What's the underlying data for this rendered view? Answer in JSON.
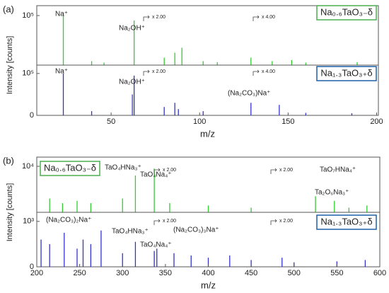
{
  "chart_data": [
    {
      "type": "bar",
      "panel_label": "(a)",
      "ylabel": "Intensity [counts]",
      "sample": "Na₀.₆TaO₃₋δ",
      "sample_color": "#4caf50",
      "color": "#33cc33",
      "xlim": [
        8,
        201
      ],
      "ylim": [
        0,
        120000
      ],
      "yticks": [
        {
          "value": 100000,
          "label": "10⁵"
        }
      ],
      "x": [
        23,
        39,
        46,
        63,
        80,
        86,
        90,
        102,
        110,
        129,
        141,
        152,
        160,
        189
      ],
      "values": [
        100000,
        8000,
        5000,
        90000,
        15000,
        25000,
        35000,
        8000,
        6000,
        15000,
        8000,
        10000,
        5000,
        6000
      ],
      "annotations": [
        {
          "text": "Na⁺",
          "color": "#222"
        },
        {
          "text": "Na₂OH⁺",
          "color": "#222"
        },
        {
          "text": "x 2.00",
          "color": "#444"
        },
        {
          "text": "x 4.00",
          "color": "#444"
        }
      ]
    },
    {
      "type": "bar",
      "xlabel": "m/z",
      "sample": "Na₁.₃TaO₃₊δ",
      "sample_color": "#1f5fa8",
      "color": "#3333cc",
      "xlim": [
        8,
        201
      ],
      "xticks": [
        50,
        100,
        150,
        200
      ],
      "ylim": [
        0,
        120000
      ],
      "yticks": [
        0,
        {
          "value": 100000,
          "label": "10⁵"
        }
      ],
      "x": [
        23,
        39,
        62,
        63,
        80,
        86,
        88,
        102,
        129,
        145,
        160,
        186
      ],
      "values": [
        100000,
        10000,
        50000,
        95000,
        20000,
        30000,
        15000,
        10000,
        30000,
        25000,
        6000,
        5000
      ],
      "annotations": [
        {
          "text": "Na⁺",
          "color": "#222"
        },
        {
          "text": "Na₂OH⁺",
          "color": "#222"
        },
        {
          "text": "x 2.00",
          "color": "#444"
        },
        {
          "text": "x 4.00",
          "color": "#444"
        },
        {
          "text": "(Na₂CO₃)Na⁺",
          "color": "#222"
        }
      ]
    },
    {
      "type": "bar",
      "panel_label": "(b)",
      "ylabel": "Intensity [counts]",
      "sample": "Na₀.₆TaO₃₋δ",
      "sample_color": "#4caf50",
      "color": "#33cc33",
      "xlim": [
        200,
        600
      ],
      "ylim": [
        0,
        12000
      ],
      "yticks": [
        {
          "value": 10000,
          "label": "10⁴"
        }
      ],
      "x": [
        215,
        230,
        247,
        263,
        300,
        315,
        337,
        355,
        400,
        450,
        525,
        547,
        564,
        585
      ],
      "values": [
        3000,
        2000,
        2500,
        2000,
        3000,
        8000,
        9500,
        2000,
        1500,
        1000,
        3500,
        2500,
        1000,
        1500
      ],
      "annotations": [
        {
          "text": "TaO₄HNa₃⁺",
          "color": "#c0392b"
        },
        {
          "text": "TaO₄Na₄⁺",
          "color": "#c0392b"
        },
        {
          "text": "x 2.00",
          "color": "#444"
        },
        {
          "text": "x 2.00",
          "color": "#444"
        },
        {
          "text": "TaO₇HNa₄⁺",
          "color": "#c0392b"
        },
        {
          "text": "Ta₂O₆Na₃⁺",
          "color": "#c0392b"
        }
      ]
    },
    {
      "type": "bar",
      "xlabel": "m/z",
      "sample": "Na₁.₃TaO₃₊δ",
      "sample_color": "#1f5fa8",
      "color": "#3333cc",
      "xlim": [
        200,
        600
      ],
      "xticks": [
        200,
        250,
        300,
        350,
        400,
        450,
        500,
        550,
        600
      ],
      "ylim": [
        0,
        1200
      ],
      "yticks": [
        0,
        {
          "value": 1000,
          "label": "10³"
        }
      ],
      "x": [
        205,
        215,
        232,
        247,
        254,
        263,
        275,
        300,
        315,
        337,
        340,
        360,
        380,
        400,
        425,
        450,
        486,
        500,
        550,
        583
      ],
      "values": [
        600,
        500,
        750,
        400,
        600,
        500,
        800,
        300,
        550,
        350,
        400,
        300,
        250,
        200,
        250,
        150,
        200,
        100,
        120,
        150
      ],
      "annotations": [
        {
          "text": "(Na₂CO₃)₂Na⁺",
          "color": "#222"
        },
        {
          "text": "TaO₄HNa₃⁺",
          "color": "#c0392b"
        },
        {
          "text": "(Na₂CO₃)₃Na⁺",
          "color": "#222"
        },
        {
          "text": "TaO₄Na₄⁺",
          "color": "#c0392b"
        },
        {
          "text": "x 2.00",
          "color": "#444"
        },
        {
          "text": "x 2.00",
          "color": "#444"
        }
      ]
    }
  ]
}
